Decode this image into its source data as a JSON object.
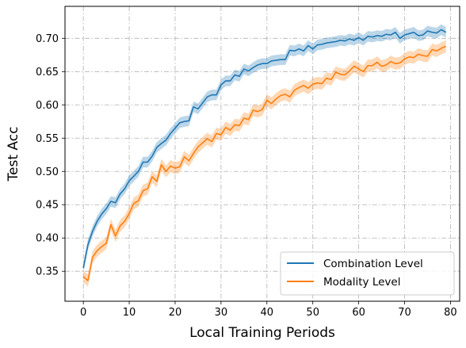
{
  "chart_data": {
    "type": "line",
    "xlabel": "Local Training Periods",
    "ylabel": "Test Acc",
    "xlim": [
      -4,
      82
    ],
    "ylim": [
      0.305,
      0.748
    ],
    "xticks": [
      0,
      10,
      20,
      30,
      40,
      50,
      60,
      70,
      80
    ],
    "yticks": [
      0.35,
      0.4,
      0.45,
      0.5,
      0.55,
      0.6,
      0.65,
      0.7
    ],
    "grid": true,
    "legend_position": "lower-right",
    "series": [
      {
        "name": "Combination Level",
        "color": "#1f77b4",
        "band_color": "#1f77b4",
        "band_halfwidth": 0.008,
        "x": [
          0,
          1,
          2,
          3,
          4,
          5,
          6,
          7,
          8,
          9,
          10,
          11,
          12,
          13,
          14,
          15,
          16,
          17,
          18,
          19,
          20,
          21,
          22,
          23,
          24,
          25,
          26,
          27,
          28,
          29,
          30,
          31,
          32,
          33,
          34,
          35,
          36,
          37,
          38,
          39,
          40,
          41,
          42,
          43,
          44,
          45,
          46,
          47,
          48,
          49,
          50,
          51,
          52,
          53,
          54,
          55,
          56,
          57,
          58,
          59,
          60,
          61,
          62,
          63,
          64,
          65,
          66,
          67,
          68,
          69,
          70,
          71,
          72,
          73,
          74,
          75,
          76,
          77,
          78,
          79
        ],
        "y": [
          0.355,
          0.39,
          0.41,
          0.425,
          0.436,
          0.444,
          0.455,
          0.453,
          0.466,
          0.474,
          0.486,
          0.493,
          0.5,
          0.514,
          0.514,
          0.523,
          0.536,
          0.542,
          0.547,
          0.557,
          0.565,
          0.573,
          0.575,
          0.576,
          0.597,
          0.594,
          0.603,
          0.612,
          0.615,
          0.615,
          0.63,
          0.636,
          0.636,
          0.645,
          0.643,
          0.654,
          0.651,
          0.656,
          0.66,
          0.662,
          0.662,
          0.666,
          0.667,
          0.668,
          0.668,
          0.682,
          0.681,
          0.684,
          0.681,
          0.689,
          0.684,
          0.69,
          0.691,
          0.693,
          0.694,
          0.695,
          0.697,
          0.696,
          0.699,
          0.697,
          0.701,
          0.697,
          0.703,
          0.702,
          0.704,
          0.703,
          0.706,
          0.705,
          0.709,
          0.7,
          0.705,
          0.707,
          0.709,
          0.704,
          0.705,
          0.711,
          0.709,
          0.708,
          0.713,
          0.709
        ]
      },
      {
        "name": "Modality Level",
        "color": "#ff7f0e",
        "band_color": "#ff7f0e",
        "band_halfwidth": 0.009,
        "x": [
          0,
          1,
          2,
          3,
          4,
          5,
          6,
          7,
          8,
          9,
          10,
          11,
          12,
          13,
          14,
          15,
          16,
          17,
          18,
          19,
          20,
          21,
          22,
          23,
          24,
          25,
          26,
          27,
          28,
          29,
          30,
          31,
          32,
          33,
          34,
          35,
          36,
          37,
          38,
          39,
          40,
          41,
          42,
          43,
          44,
          45,
          46,
          47,
          48,
          49,
          50,
          51,
          52,
          53,
          54,
          55,
          56,
          57,
          58,
          59,
          60,
          61,
          62,
          63,
          64,
          65,
          66,
          67,
          68,
          69,
          70,
          71,
          72,
          73,
          74,
          75,
          76,
          77,
          78,
          79
        ],
        "y": [
          0.342,
          0.336,
          0.371,
          0.381,
          0.387,
          0.392,
          0.42,
          0.403,
          0.418,
          0.425,
          0.437,
          0.452,
          0.456,
          0.471,
          0.474,
          0.492,
          0.485,
          0.51,
          0.5,
          0.508,
          0.505,
          0.507,
          0.522,
          0.516,
          0.527,
          0.537,
          0.543,
          0.549,
          0.545,
          0.557,
          0.555,
          0.566,
          0.562,
          0.57,
          0.569,
          0.58,
          0.578,
          0.592,
          0.59,
          0.593,
          0.607,
          0.602,
          0.609,
          0.614,
          0.616,
          0.612,
          0.622,
          0.626,
          0.629,
          0.625,
          0.631,
          0.633,
          0.632,
          0.64,
          0.638,
          0.649,
          0.646,
          0.645,
          0.651,
          0.658,
          0.654,
          0.65,
          0.659,
          0.659,
          0.664,
          0.658,
          0.66,
          0.665,
          0.662,
          0.663,
          0.669,
          0.672,
          0.671,
          0.676,
          0.674,
          0.673,
          0.683,
          0.681,
          0.685,
          0.688
        ]
      }
    ]
  }
}
